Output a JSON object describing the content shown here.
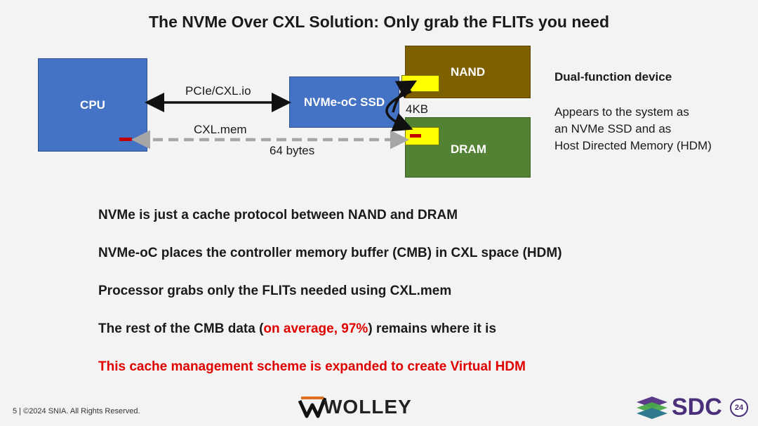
{
  "slide": {
    "title": "The NVMe Over CXL Solution: Only grab the FLITs you need",
    "diagram": {
      "cpu_label": "CPU",
      "ssd_label": "NVMe-oC SSD",
      "nand_label": "NAND",
      "dram_label": "DRAM",
      "link_pcie_label": "PCIe/CXL.io",
      "link_mem_label": "CXL.mem",
      "size_4kb_label": "4KB",
      "size_64b_label": "64 bytes"
    },
    "side_panel": {
      "heading": "Dual-function device",
      "lines": [
        "Appears to the system as",
        "an NVMe SSD and as",
        "Host Directed Memory (HDM)"
      ]
    },
    "bullets": {
      "b1": "NVMe is just a cache protocol between NAND and DRAM",
      "b2": "NVMe-oC places the controller memory buffer (CMB) in CXL space (HDM)",
      "b3": "Processor grabs only the FLITs needed using CXL.mem",
      "b4_pre": "The rest of the CMB data (",
      "b4_red": "on average, 97%",
      "b4_post": ") remains where it is",
      "b5": "This cache management scheme is expanded to create Virtual HDM"
    },
    "footer": "5 | ©2024 SNIA. All Rights Reserved.",
    "logos": {
      "wolley": "WOLLEY",
      "sdc": "SDC",
      "sdc_year": "24"
    },
    "colors": {
      "blue_box": "#4472c4",
      "nand_box": "#7f6000",
      "dram_box": "#548235",
      "yellow_cell": "#ffff00",
      "red_highlight": "#e00000",
      "arrow_gray": "#a6a6a6"
    }
  }
}
